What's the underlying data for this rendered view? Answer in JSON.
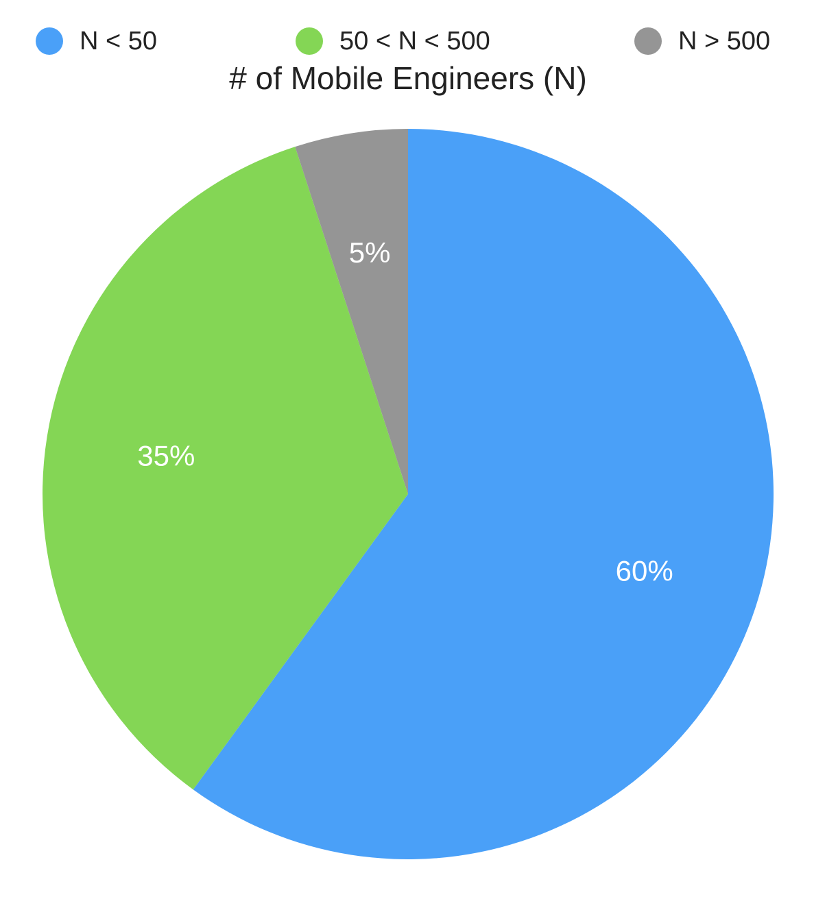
{
  "chart_data": {
    "type": "pie",
    "title": "# of Mobile Engineers (N)",
    "legend_position": "top",
    "slices": [
      {
        "name": "N < 50",
        "value": 60,
        "label": "60%",
        "color": "#4aa0f8"
      },
      {
        "name": "50 < N < 500",
        "value": 35,
        "label": "35%",
        "color": "#84d655"
      },
      {
        "name": "N > 500",
        "value": 5,
        "label": "5%",
        "color": "#959595"
      }
    ],
    "start_angle_deg": 0,
    "direction": "clockwise"
  }
}
